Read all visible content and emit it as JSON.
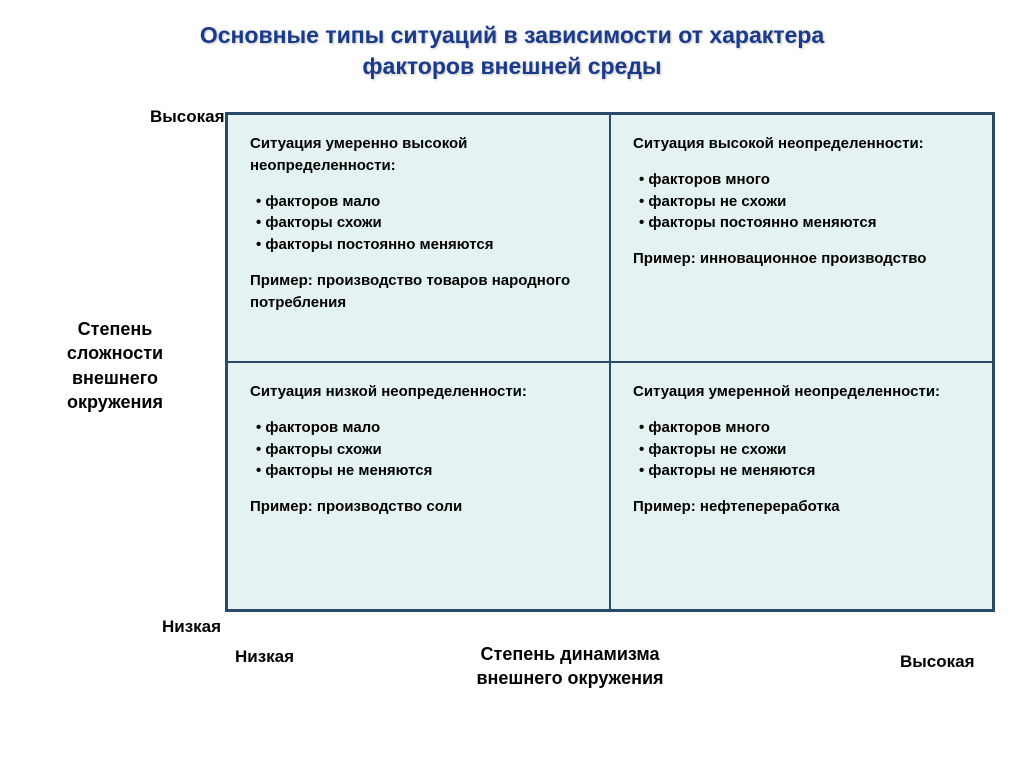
{
  "title_line1": "Основные типы ситуаций в зависимости от характера",
  "title_line2": "факторов внешней среды",
  "yaxis": {
    "high": "Высокая",
    "label": "Степень сложности внешнего окружения",
    "low": "Низкая"
  },
  "xaxis": {
    "low": "Низкая",
    "label": "Степень динамизма внешнего окружения",
    "high": "Высокая"
  },
  "matrix": {
    "background_color": "#e4f2f2",
    "border_color": "#2a4a6a",
    "title_color": "#1a3a8a"
  },
  "cells": {
    "top_left": {
      "title": "Ситуация умеренно высокой неопределенности:",
      "b1": "факторов мало",
      "b2": "факторы схожи",
      "b3": "факторы постоянно меняются",
      "example": "Пример: производство товаров народного потребления"
    },
    "top_right": {
      "title": "Ситуация высокой неопределенности:",
      "b1": "факторов много",
      "b2": "факторы не схожи",
      "b3": "факторы постоянно меняются",
      "example": "Пример: инновационное производство"
    },
    "bottom_left": {
      "title": "Ситуация низкой неопределенности:",
      "b1": "факторов мало",
      "b2": "факторы схожи",
      "b3": "факторы не меняются",
      "example": "Пример: производство соли"
    },
    "bottom_right": {
      "title": "Ситуация умеренной неопределенности:",
      "b1": "факторов много",
      "b2": "факторы не схожи",
      "b3": "факторы не меняются",
      "example": "Пример: нефтепереработка"
    }
  }
}
